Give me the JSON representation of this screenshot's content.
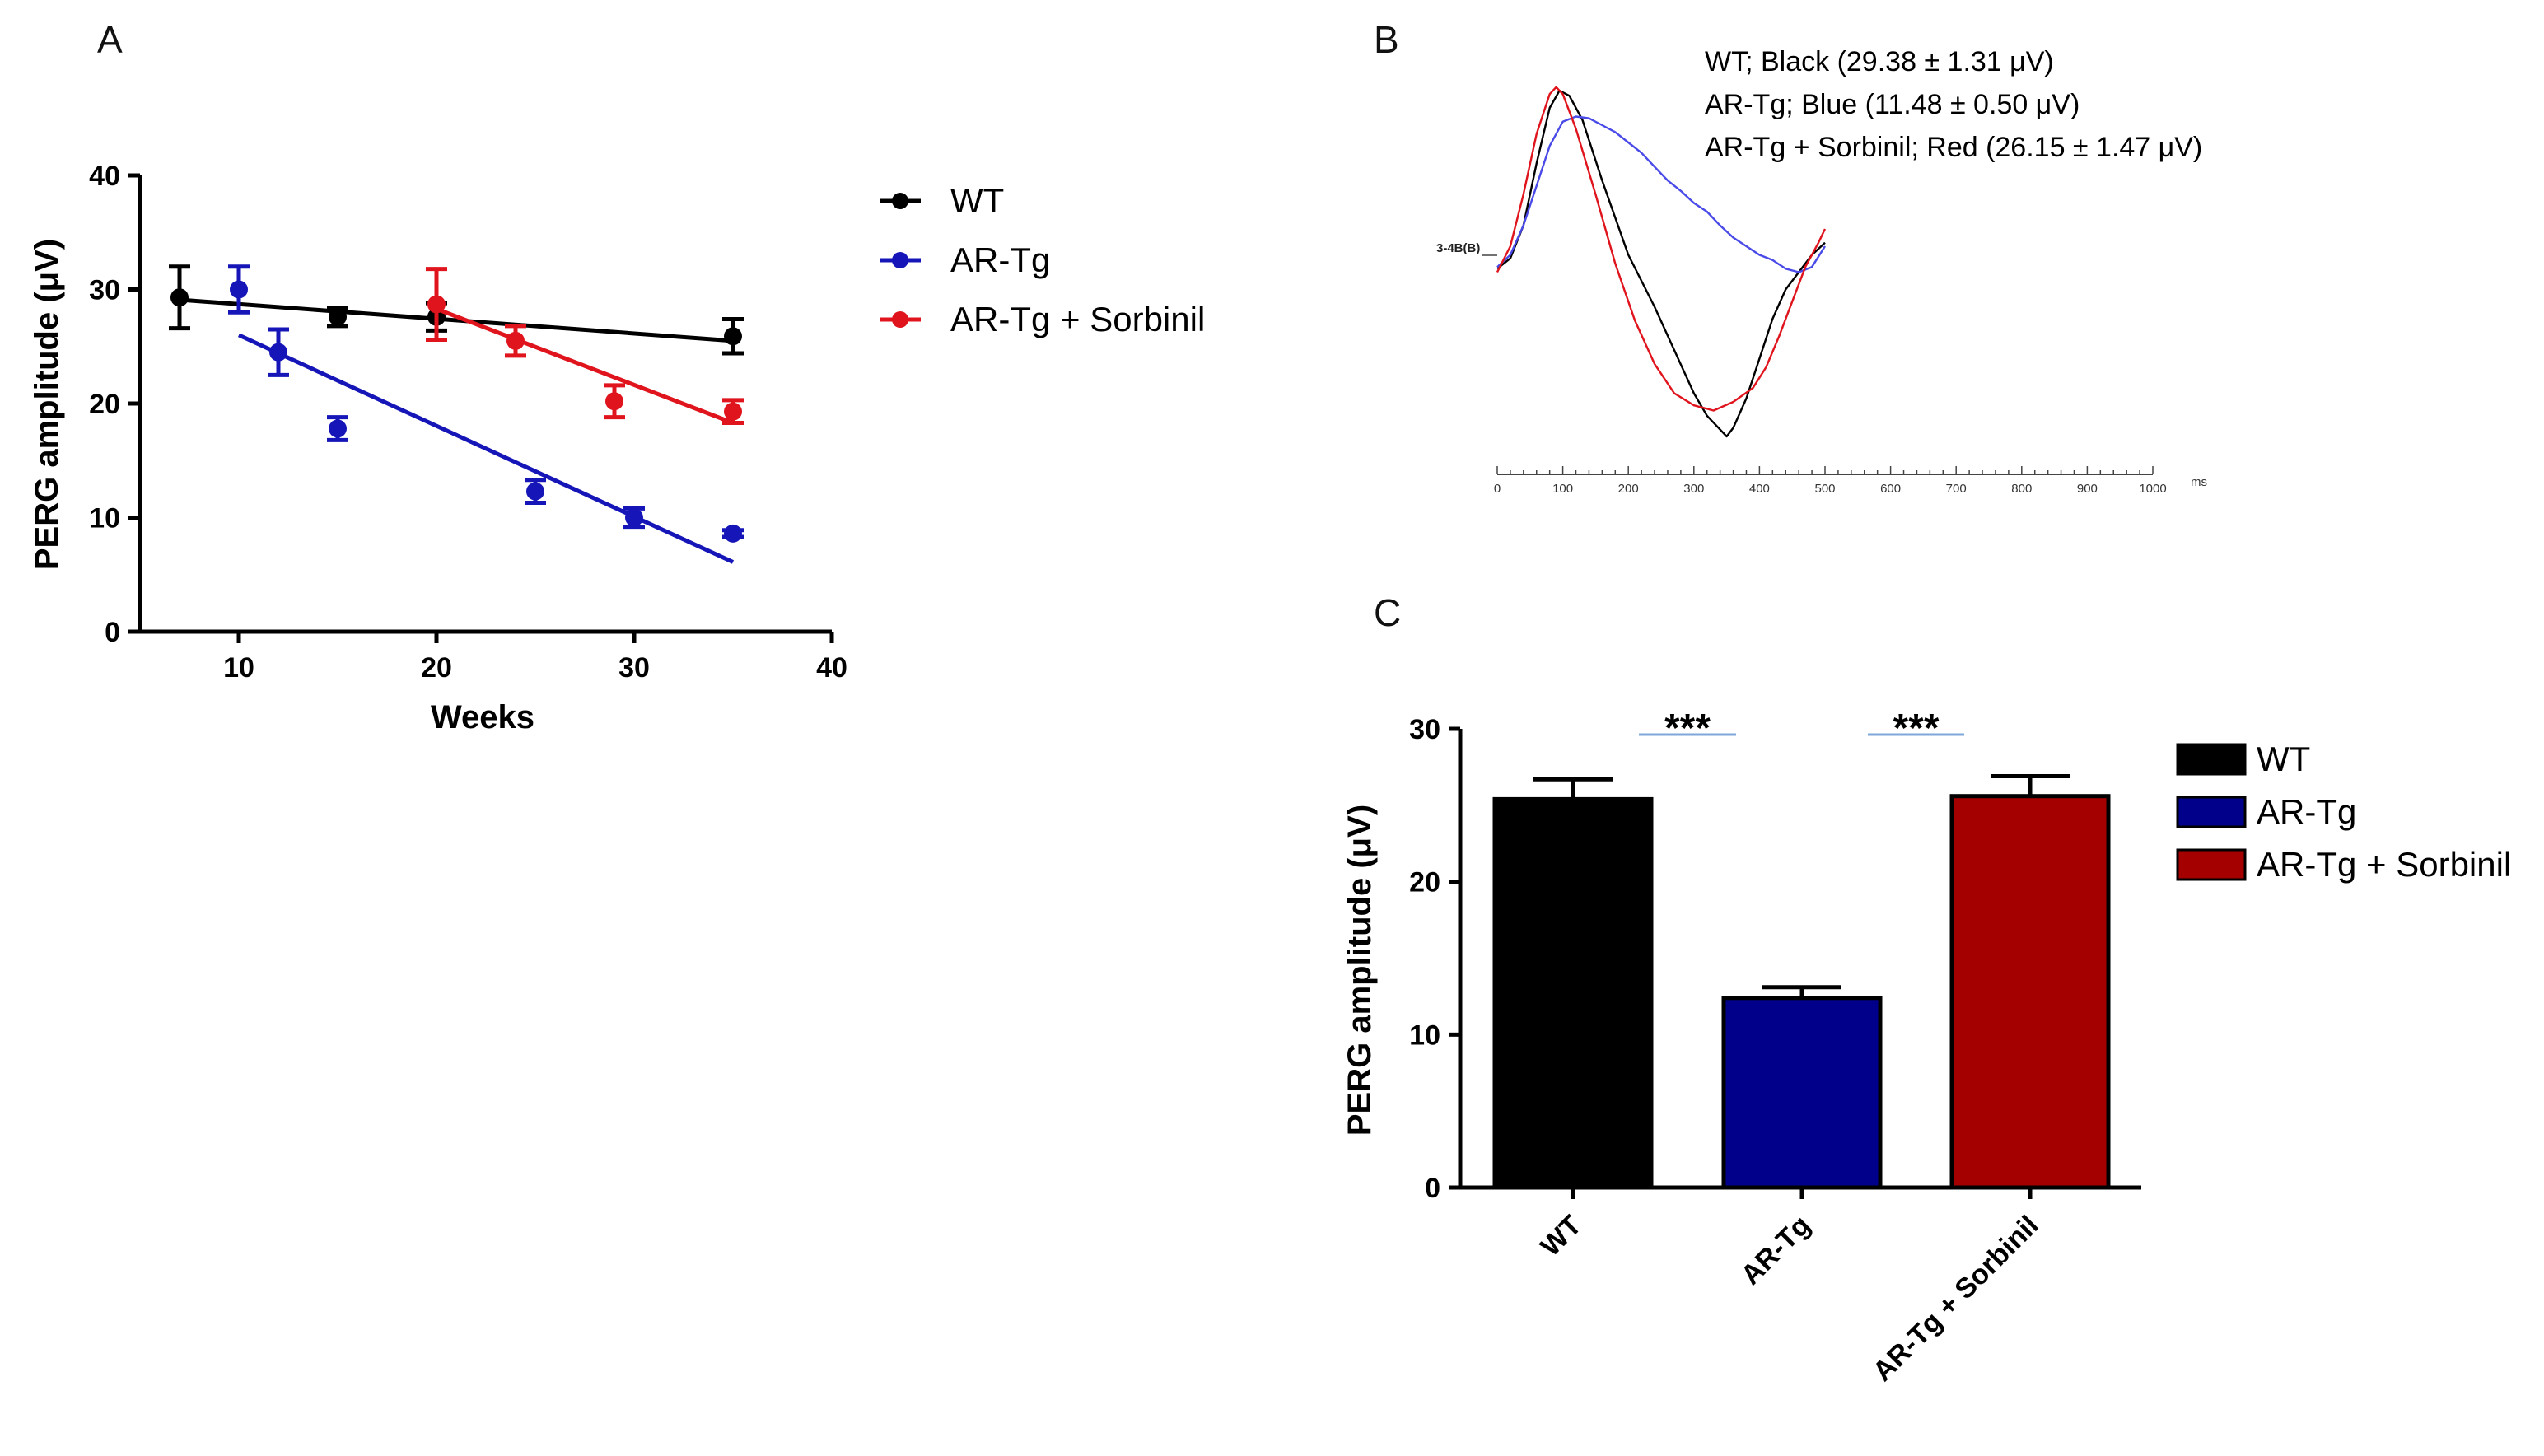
{
  "colors": {
    "wt": "#000000",
    "ar_tg": "#1616b8",
    "sorbinil": "#e0141c",
    "trace_blue": "#4a4ae8",
    "bar_ar_tg": "#00008b",
    "bar_sorbinil": "#a50000",
    "sig_line": "#7fa7d9"
  },
  "chart_data": [
    {
      "panel": "A",
      "type": "scatter",
      "xlabel": "Weeks",
      "ylabel": "PERG amplitude (μV)",
      "xlim": [
        5,
        40
      ],
      "ylim": [
        0,
        40
      ],
      "xticks": [
        "10",
        "20",
        "30",
        "40"
      ],
      "yticks": [
        "0",
        "10",
        "20",
        "30",
        "40"
      ],
      "legend_position": "right",
      "series": [
        {
          "name": "WT",
          "points": [
            {
              "x": 7,
              "y": 29.3,
              "err": 2.7
            },
            {
              "x": 15,
              "y": 27.6,
              "err": 0.8
            },
            {
              "x": 20,
              "y": 27.6,
              "err": 1.2
            },
            {
              "x": 35,
              "y": 25.9,
              "err": 1.5
            }
          ],
          "fit": [
            [
              7,
              29.1
            ],
            [
              35,
              25.5
            ]
          ]
        },
        {
          "name": "AR-Tg",
          "points": [
            {
              "x": 10,
              "y": 30.0,
              "err": 2.0
            },
            {
              "x": 12,
              "y": 24.5,
              "err": 2.0
            },
            {
              "x": 15,
              "y": 17.8,
              "err": 1.0
            },
            {
              "x": 25,
              "y": 12.3,
              "err": 1.0
            },
            {
              "x": 30,
              "y": 10.0,
              "err": 0.8
            },
            {
              "x": 35,
              "y": 8.6,
              "err": 0.3
            }
          ],
          "fit": [
            [
              10,
              26.0
            ],
            [
              35,
              6.1
            ]
          ]
        },
        {
          "name": "AR-Tg + Sorbinil",
          "points": [
            {
              "x": 20,
              "y": 28.7,
              "err": 3.1
            },
            {
              "x": 24,
              "y": 25.5,
              "err": 1.3
            },
            {
              "x": 29,
              "y": 20.2,
              "err": 1.4
            },
            {
              "x": 35,
              "y": 19.3,
              "err": 1.0
            }
          ],
          "fit": [
            [
              20,
              28.3
            ],
            [
              35,
              18.3
            ]
          ]
        }
      ]
    },
    {
      "panel": "B",
      "type": "line",
      "xlabel": "ms",
      "xlim": [
        0,
        1000
      ],
      "xticks": [
        "0",
        "100",
        "200",
        "300",
        "400",
        "500",
        "600",
        "700",
        "800",
        "900",
        "1000"
      ],
      "trace_label": "3-4B(B)",
      "legend": [
        "WT; Black (29.38 ± 1.31 μV)",
        "AR-Tg; Blue (11.48 ± 0.50 μV)",
        "AR-Tg + Sorbinil; Red (26.15 ± 1.47 μV)"
      ],
      "series": [
        {
          "name": "WT",
          "x": [
            0,
            20,
            40,
            60,
            80,
            95,
            110,
            130,
            160,
            200,
            240,
            270,
            300,
            320,
            340,
            350,
            360,
            380,
            400,
            420,
            440,
            460,
            480,
            500
          ],
          "y": [
            -0.03,
            0.03,
            0.22,
            0.58,
            0.9,
            1.0,
            0.97,
            0.83,
            0.48,
            0.05,
            -0.25,
            -0.5,
            -0.75,
            -0.88,
            -0.96,
            -1.0,
            -0.95,
            -0.78,
            -0.55,
            -0.32,
            -0.15,
            -0.05,
            0.05,
            0.12
          ]
        },
        {
          "name": "AR-Tg",
          "x": [
            0,
            20,
            40,
            60,
            80,
            100,
            120,
            140,
            160,
            180,
            200,
            220,
            240,
            260,
            280,
            300,
            320,
            340,
            360,
            380,
            400,
            420,
            440,
            460,
            480,
            500
          ],
          "y": [
            -0.02,
            0.05,
            0.22,
            0.45,
            0.68,
            0.82,
            0.85,
            0.84,
            0.8,
            0.76,
            0.7,
            0.64,
            0.56,
            0.48,
            0.42,
            0.35,
            0.3,
            0.22,
            0.15,
            0.1,
            0.05,
            0.02,
            -0.03,
            -0.05,
            -0.02,
            0.1
          ]
        },
        {
          "name": "AR-Tg + Sorbinil",
          "x": [
            0,
            20,
            40,
            60,
            80,
            90,
            100,
            120,
            150,
            180,
            210,
            240,
            270,
            300,
            330,
            360,
            390,
            410,
            430,
            450,
            470,
            490,
            500
          ],
          "y": [
            -0.05,
            0.1,
            0.4,
            0.75,
            0.98,
            1.02,
            0.98,
            0.78,
            0.4,
            0.0,
            -0.33,
            -0.58,
            -0.75,
            -0.82,
            -0.85,
            -0.8,
            -0.72,
            -0.6,
            -0.42,
            -0.22,
            -0.02,
            0.12,
            0.2
          ]
        }
      ]
    },
    {
      "panel": "C",
      "type": "bar",
      "ylabel": "PERG amplitude (μV)",
      "ylim": [
        0,
        30
      ],
      "yticks": [
        "0",
        "10",
        "20",
        "30"
      ],
      "categories": [
        "WT",
        "AR-Tg",
        "AR-Tg + Sorbinil"
      ],
      "values": [
        25.4,
        12.4,
        25.6
      ],
      "errors": [
        1.3,
        0.7,
        1.3
      ],
      "legend_position": "right",
      "legend": [
        "WT",
        "AR-Tg",
        "AR-Tg + Sorbinil"
      ],
      "significance": [
        {
          "from": "WT",
          "to": "AR-Tg",
          "label": "***"
        },
        {
          "from": "AR-Tg",
          "to": "AR-Tg + Sorbinil",
          "label": "***"
        }
      ]
    }
  ]
}
